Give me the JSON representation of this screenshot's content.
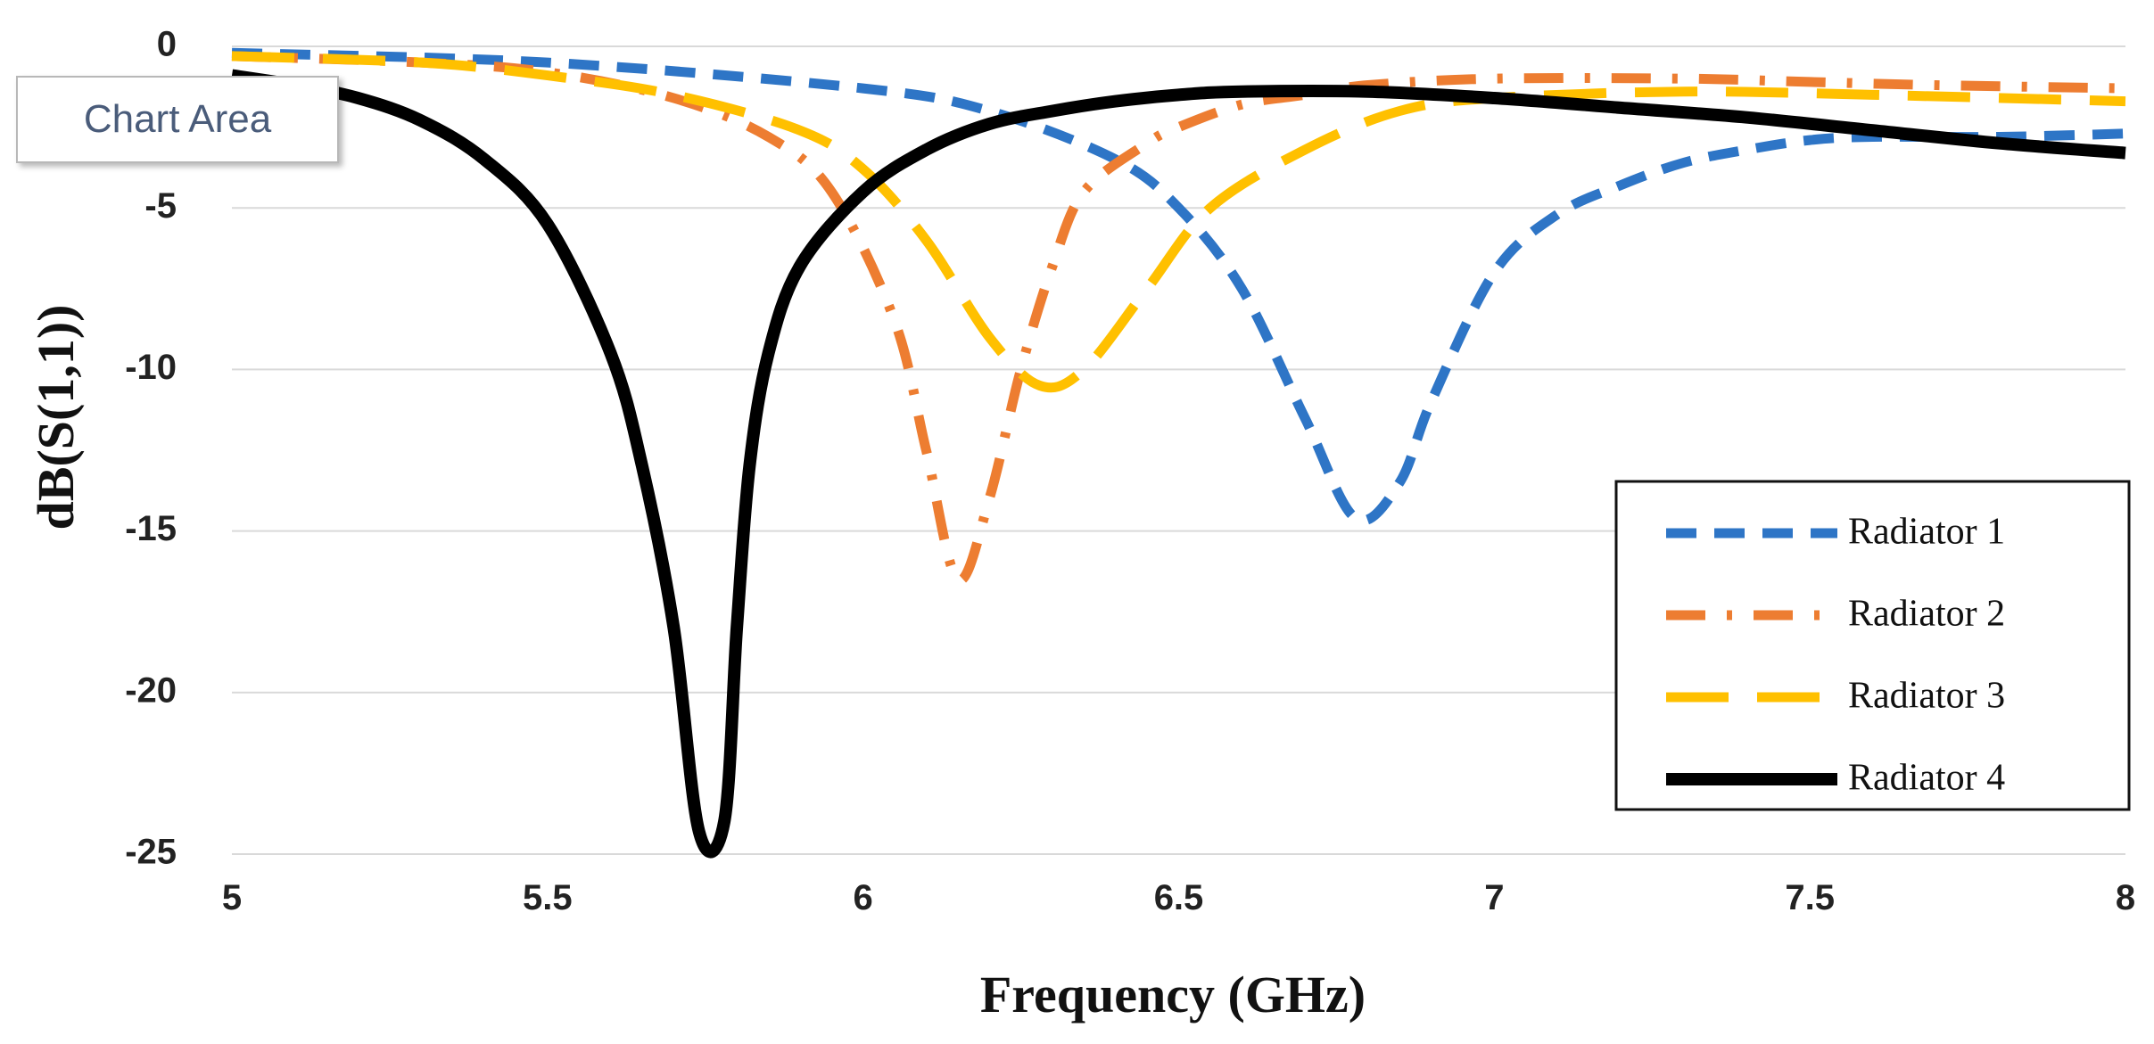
{
  "chart_data": {
    "type": "line",
    "title": "",
    "xlabel": "Frequency (GHz)",
    "ylabel": "dB(S(1,1))",
    "xlim": [
      5,
      8
    ],
    "ylim": [
      -25,
      0
    ],
    "x_ticks": [
      5,
      5.5,
      6,
      6.5,
      7,
      7.5,
      8
    ],
    "x_tick_labels": [
      "5",
      "5.5",
      "6",
      "6.5",
      "7",
      "7.5",
      "8"
    ],
    "y_ticks": [
      0,
      -5,
      -10,
      -15,
      -20,
      -25
    ],
    "y_tick_labels": [
      "0",
      "-5",
      "-10",
      "-15",
      "-20",
      "-25"
    ],
    "grid": true,
    "legend_position": "bottom-right",
    "series": [
      {
        "name": "Radiator 1",
        "color": "#2E75C6",
        "style": "dash",
        "x": [
          5.0,
          5.5,
          6.0,
          6.2,
          6.4,
          6.5,
          6.6,
          6.7,
          6.78,
          6.85,
          6.9,
          7.0,
          7.1,
          7.2,
          7.3,
          7.4,
          7.5,
          7.6,
          7.8,
          8.0
        ],
        "y": [
          -0.2,
          -0.5,
          -1.3,
          -2.0,
          -3.5,
          -5.0,
          -7.5,
          -11.5,
          -14.6,
          -13.5,
          -11.0,
          -7.0,
          -5.2,
          -4.3,
          -3.6,
          -3.2,
          -2.9,
          -2.8,
          -2.8,
          -2.7
        ]
      },
      {
        "name": "Radiator 2",
        "color": "#ED7D31",
        "style": "dash-dot",
        "x": [
          5.0,
          5.3,
          5.5,
          5.7,
          5.85,
          5.95,
          6.05,
          6.1,
          6.15,
          6.2,
          6.25,
          6.3,
          6.35,
          6.45,
          6.5,
          6.6,
          6.7,
          6.8,
          7.0,
          7.3,
          7.5,
          7.7,
          8.0
        ],
        "y": [
          -0.3,
          -0.5,
          -0.8,
          -1.6,
          -2.8,
          -4.5,
          -8.5,
          -12.5,
          -16.5,
          -14.0,
          -10.0,
          -6.8,
          -4.5,
          -3.0,
          -2.5,
          -1.8,
          -1.5,
          -1.2,
          -1.0,
          -1.0,
          -1.1,
          -1.2,
          -1.3
        ]
      },
      {
        "name": "Radiator 3",
        "color": "#FFC000",
        "style": "long-dash",
        "x": [
          5.0,
          5.3,
          5.5,
          5.7,
          5.9,
          6.0,
          6.1,
          6.2,
          6.28,
          6.35,
          6.45,
          6.55,
          6.7,
          6.85,
          7.0,
          7.3,
          7.6,
          8.0
        ],
        "y": [
          -0.3,
          -0.5,
          -0.9,
          -1.5,
          -2.6,
          -3.8,
          -6.0,
          -9.0,
          -10.5,
          -10.0,
          -7.5,
          -5.0,
          -3.2,
          -2.0,
          -1.6,
          -1.4,
          -1.5,
          -1.7
        ]
      },
      {
        "name": "Radiator 4",
        "color": "#000000",
        "style": "solid",
        "x": [
          5.0,
          5.1,
          5.2,
          5.3,
          5.4,
          5.5,
          5.6,
          5.65,
          5.7,
          5.74,
          5.78,
          5.8,
          5.82,
          5.85,
          5.9,
          6.0,
          6.1,
          6.2,
          6.3,
          6.4,
          6.5,
          6.6,
          6.8,
          7.0,
          7.2,
          7.4,
          7.6,
          7.8,
          8.0
        ],
        "y": [
          -0.9,
          -1.2,
          -1.6,
          -2.3,
          -3.5,
          -5.5,
          -9.5,
          -13.0,
          -18.0,
          -24.3,
          -24.0,
          -18.0,
          -13.0,
          -9.5,
          -6.8,
          -4.5,
          -3.2,
          -2.4,
          -2.0,
          -1.7,
          -1.5,
          -1.4,
          -1.4,
          -1.6,
          -1.9,
          -2.2,
          -2.6,
          -3.0,
          -3.3
        ]
      }
    ]
  },
  "ui": {
    "chart_area_tooltip": "Chart Area"
  }
}
